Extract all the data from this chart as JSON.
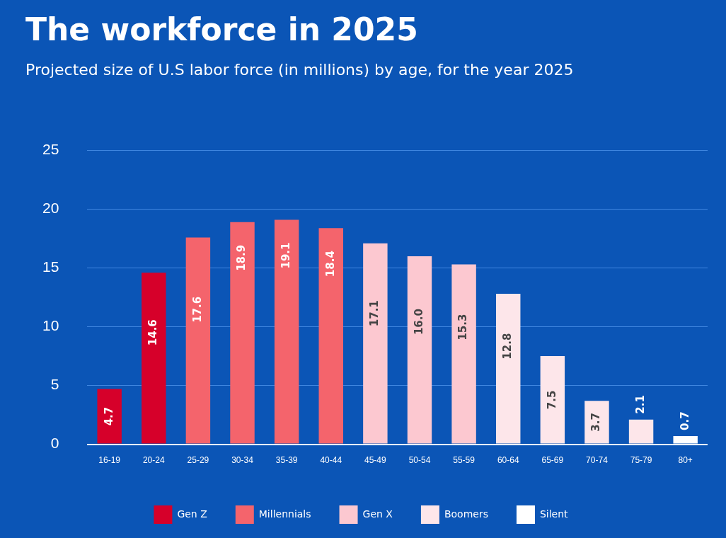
{
  "chart_data": {
    "type": "bar",
    "title": "The workforce in 2025",
    "subtitle": "Projected size of U.S labor force (in millions) by age, for the year 2025",
    "categories": [
      "16-19",
      "20-24",
      "25-29",
      "30-34",
      "35-39",
      "40-44",
      "45-49",
      "50-54",
      "55-59",
      "60-64",
      "65-69",
      "70-74",
      "75-79",
      "80+"
    ],
    "stacked": true,
    "series": [
      {
        "name": "Gen Z",
        "color": "#d6002a",
        "values": [
          4.7,
          14.6,
          null,
          null,
          null,
          null,
          null,
          null,
          null,
          null,
          null,
          null,
          null,
          null
        ],
        "value_labels": [
          "4.7",
          "14.6",
          null,
          null,
          null,
          null,
          null,
          null,
          null,
          null,
          null,
          null,
          null,
          null
        ]
      },
      {
        "name": "Millennials",
        "color": "#f4646c",
        "values": [
          null,
          null,
          17.6,
          18.9,
          19.1,
          18.4,
          null,
          null,
          null,
          null,
          null,
          null,
          null,
          null
        ],
        "value_labels": [
          null,
          null,
          "17.6",
          "18.9",
          "19.1",
          "18.4",
          null,
          null,
          null,
          null,
          null,
          null,
          null,
          null
        ]
      },
      {
        "name": "Gen X",
        "color": "#fcc8d0",
        "values": [
          null,
          null,
          null,
          null,
          null,
          null,
          17.1,
          16.0,
          15.3,
          null,
          null,
          null,
          null,
          null
        ],
        "value_labels": [
          null,
          null,
          null,
          null,
          null,
          null,
          "17.1",
          "16.0",
          "15.3",
          null,
          null,
          null,
          null,
          null
        ]
      },
      {
        "name": "Boomers",
        "color": "#fde6ea",
        "values": [
          null,
          null,
          null,
          null,
          null,
          null,
          null,
          null,
          null,
          12.8,
          7.5,
          3.7,
          2.1,
          null
        ],
        "value_labels": [
          null,
          null,
          null,
          null,
          null,
          null,
          null,
          null,
          null,
          "12.8",
          "7.5",
          "3.7",
          "2.1",
          null
        ]
      },
      {
        "name": "Silent",
        "color": "#ffffff",
        "values": [
          null,
          null,
          null,
          null,
          null,
          null,
          null,
          null,
          null,
          null,
          null,
          null,
          null,
          0.7
        ],
        "value_labels": [
          null,
          null,
          null,
          null,
          null,
          null,
          null,
          null,
          null,
          null,
          null,
          null,
          null,
          "0.7"
        ]
      }
    ],
    "ylim": [
      0,
      25
    ],
    "yticks": [
      0,
      5,
      10,
      15,
      20,
      25
    ],
    "grid": "y",
    "legend": "bottom"
  }
}
